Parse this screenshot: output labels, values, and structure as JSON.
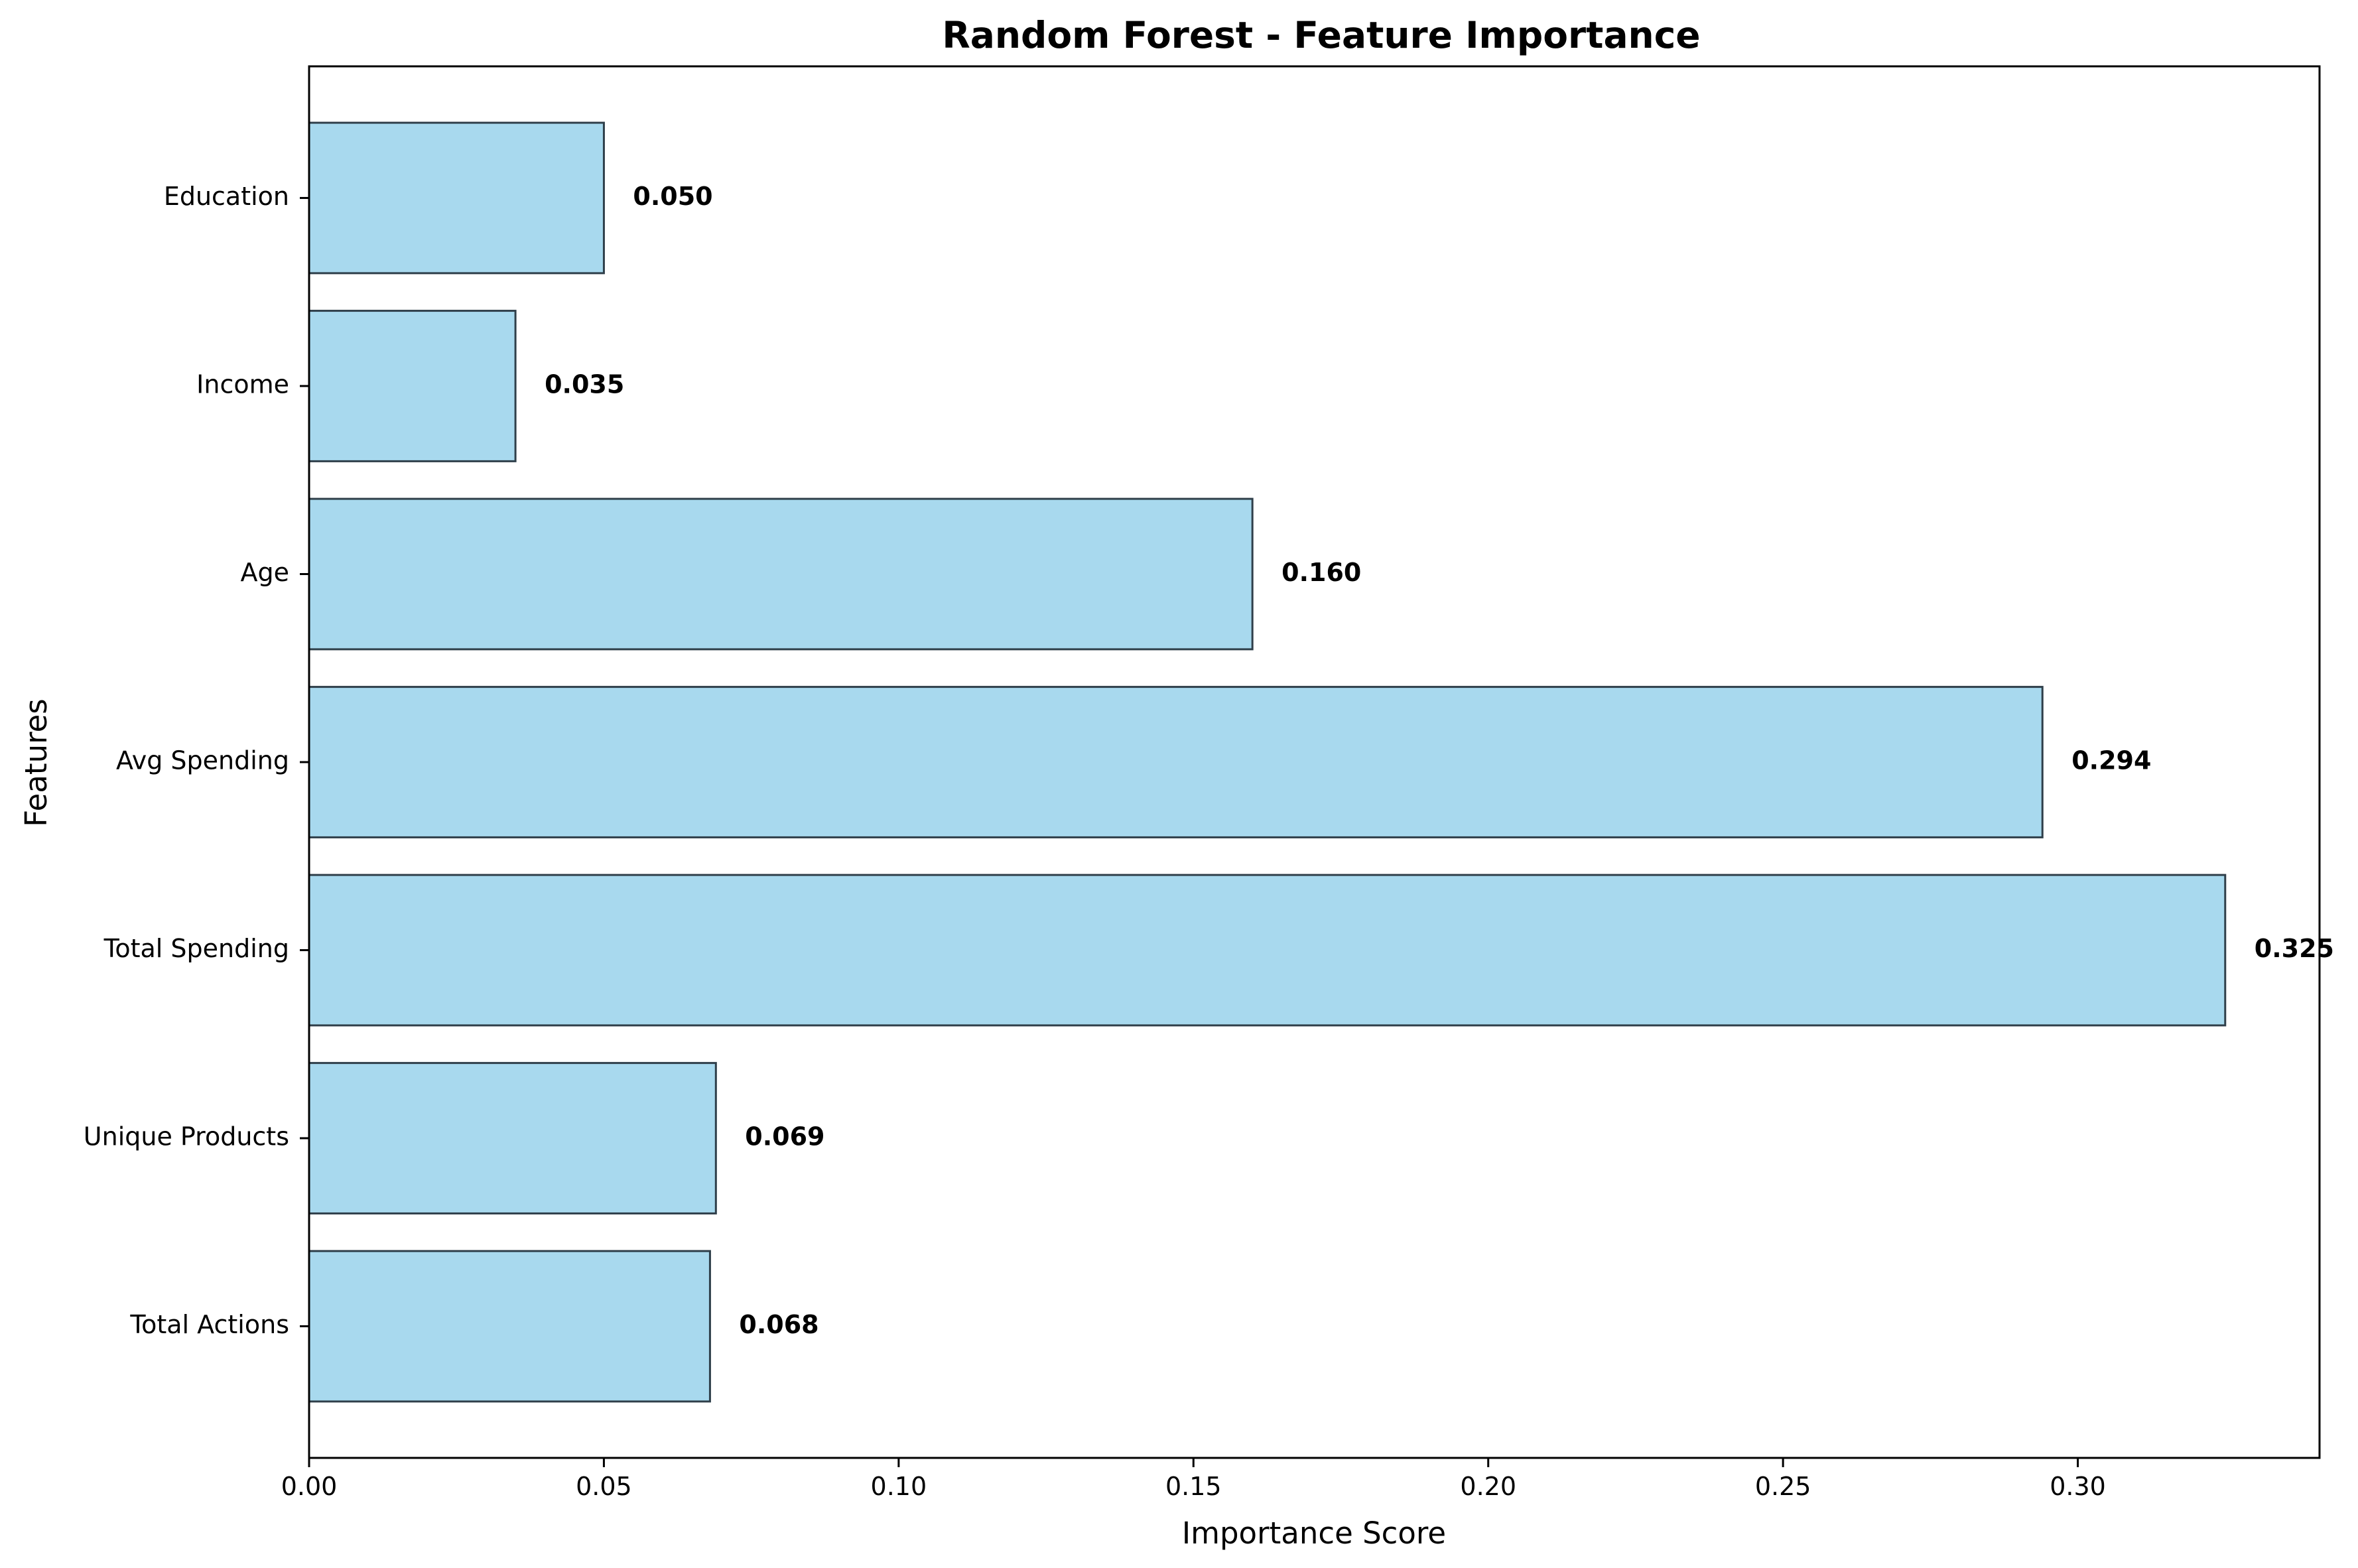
{
  "chart_data": {
    "type": "bar",
    "orientation": "horizontal",
    "title": "Random Forest - Feature Importance",
    "xlabel": "Importance Score",
    "ylabel": "Features",
    "categories": [
      "Total Actions",
      "Unique Products",
      "Total Spending",
      "Avg Spending",
      "Age",
      "Income",
      "Education"
    ],
    "values": [
      0.068,
      0.069,
      0.325,
      0.294,
      0.16,
      0.035,
      0.05
    ],
    "value_labels": [
      "0.068",
      "0.069",
      "0.325",
      "0.294",
      "0.160",
      "0.035",
      "0.050"
    ],
    "xlim": [
      0,
      0.341
    ],
    "xticks": [
      0.0,
      0.05,
      0.1,
      0.15,
      0.2,
      0.25,
      0.3
    ],
    "xtick_labels": [
      "0.00",
      "0.05",
      "0.10",
      "0.15",
      "0.20",
      "0.25",
      "0.30"
    ],
    "grid": false,
    "legend": "none",
    "colors": {
      "bar_fill": "#a8d9ee",
      "bar_edge": "#2f3f4a",
      "axes": "#000000",
      "text": "#000000"
    }
  }
}
